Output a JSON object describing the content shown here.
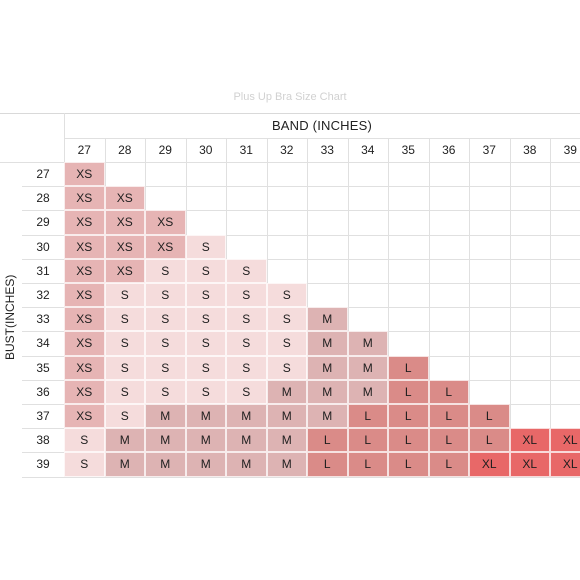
{
  "chart_data": {
    "type": "heatmap",
    "title": "Plus Up Bra Size Chart",
    "xlabel": "BAND (INCHES)",
    "ylabel": "BUST(INCHES)",
    "bands": [
      "27",
      "28",
      "29",
      "30",
      "31",
      "32",
      "33",
      "34",
      "35",
      "36",
      "37",
      "38",
      "39"
    ],
    "busts": [
      "27",
      "28",
      "29",
      "30",
      "31",
      "32",
      "33",
      "34",
      "35",
      "36",
      "37",
      "38",
      "39"
    ],
    "sizes": [
      [
        "XS",
        "",
        "",
        "",
        "",
        "",
        "",
        "",
        "",
        "",
        "",
        "",
        ""
      ],
      [
        "XS",
        "XS",
        "",
        "",
        "",
        "",
        "",
        "",
        "",
        "",
        "",
        "",
        ""
      ],
      [
        "XS",
        "XS",
        "XS",
        "",
        "",
        "",
        "",
        "",
        "",
        "",
        "",
        "",
        ""
      ],
      [
        "XS",
        "XS",
        "XS",
        "S",
        "",
        "",
        "",
        "",
        "",
        "",
        "",
        "",
        ""
      ],
      [
        "XS",
        "XS",
        "S",
        "S",
        "S",
        "",
        "",
        "",
        "",
        "",
        "",
        "",
        ""
      ],
      [
        "XS",
        "S",
        "S",
        "S",
        "S",
        "S",
        "",
        "",
        "",
        "",
        "",
        "",
        ""
      ],
      [
        "XS",
        "S",
        "S",
        "S",
        "S",
        "S",
        "M",
        "",
        "",
        "",
        "",
        "",
        ""
      ],
      [
        "XS",
        "S",
        "S",
        "S",
        "S",
        "S",
        "M",
        "M",
        "",
        "",
        "",
        "",
        ""
      ],
      [
        "XS",
        "S",
        "S",
        "S",
        "S",
        "S",
        "M",
        "M",
        "L",
        "",
        "",
        "",
        ""
      ],
      [
        "XS",
        "S",
        "S",
        "S",
        "S",
        "M",
        "M",
        "M",
        "L",
        "L",
        "",
        "",
        ""
      ],
      [
        "XS",
        "S",
        "M",
        "M",
        "M",
        "M",
        "M",
        "L",
        "L",
        "L",
        "L",
        "",
        ""
      ],
      [
        "S",
        "M",
        "M",
        "M",
        "M",
        "M",
        "L",
        "L",
        "L",
        "L",
        "L",
        "XL",
        "XL"
      ],
      [
        "S",
        "M",
        "M",
        "M",
        "M",
        "M",
        "L",
        "L",
        "L",
        "L",
        "XL",
        "XL",
        "XL"
      ]
    ],
    "size_colors": {
      "XS": "#e6b4b4",
      "S": "#f5dcdc",
      "M": "#ddb3b3",
      "L": "#da8b88",
      "XL": "#e86868"
    },
    "grid": true
  }
}
